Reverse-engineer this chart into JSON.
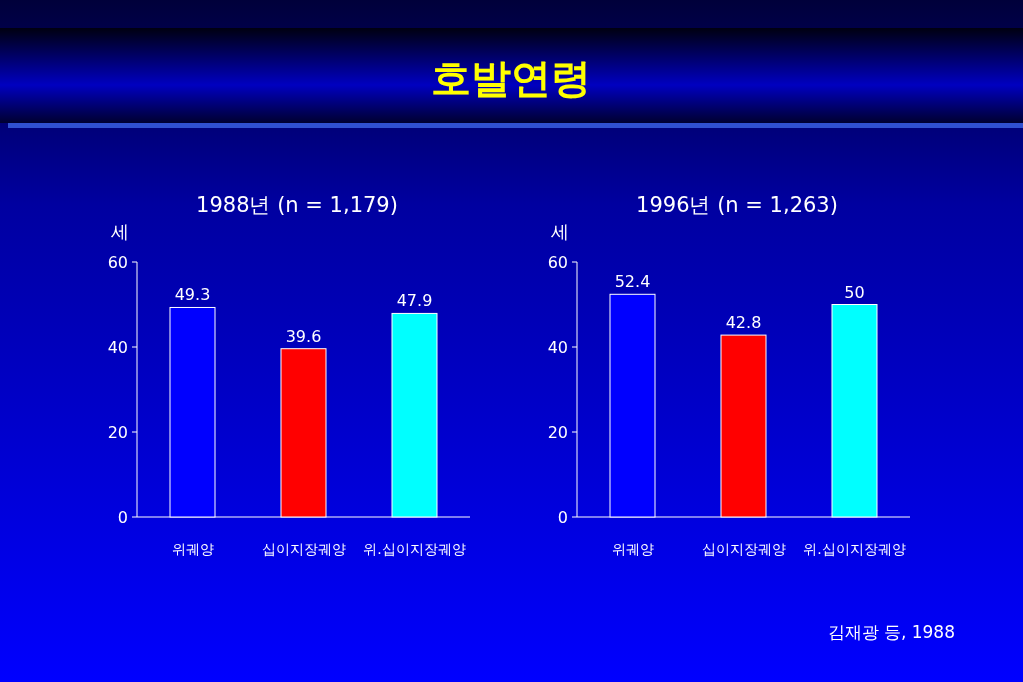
{
  "chart_data": [
    {
      "type": "other",
      "title": "호발연령",
      "annotations": [
        "김재광 등, 1988"
      ]
    },
    {
      "type": "bar",
      "title": "1988년 (n = 1,179)",
      "ylabel": "세",
      "categories": [
        "위궤양",
        "십이지장궤양",
        "위.십이지장궤양"
      ],
      "values": [
        49.3,
        39.6,
        47.9
      ],
      "colors": [
        "#0000ff",
        "#ff0000",
        "#00ffff"
      ],
      "ylim": [
        0,
        60
      ],
      "yticks": [
        0,
        20,
        40,
        60
      ],
      "data_labels": true
    },
    {
      "type": "bar",
      "title": "1996년 (n = 1,263)",
      "ylabel": "세",
      "categories": [
        "위궤양",
        "십이지장궤양",
        "위.십이지장궤양"
      ],
      "values": [
        52.4,
        42.8,
        50
      ],
      "colors": [
        "#0000ff",
        "#ff0000",
        "#00ffff"
      ],
      "ylim": [
        0,
        60
      ],
      "yticks": [
        0,
        20,
        40,
        60
      ],
      "data_labels": true
    }
  ]
}
